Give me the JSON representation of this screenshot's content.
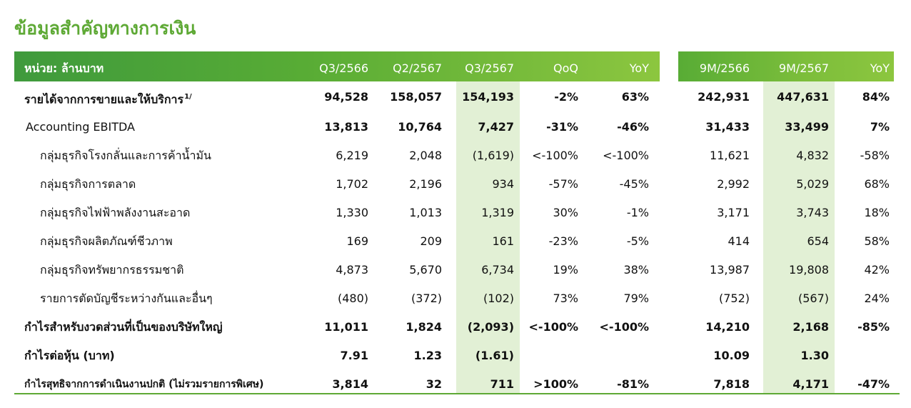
{
  "title": "ข้อมูลสำคัญทางการเงิน",
  "header": {
    "unit": "หน่วย: ล้านบาท",
    "columns": [
      "Q3/2566",
      "Q2/2567",
      "Q3/2567",
      "QoQ",
      "YoY",
      "9M/2566",
      "9M/2567",
      "YoY"
    ]
  },
  "rows": [
    {
      "label": "รายได้จากการขายและให้บริการ",
      "sup": "1/",
      "bold": true,
      "indent": 0,
      "values": [
        "94,528",
        "158,057",
        "154,193",
        "-2%",
        "63%",
        "242,931",
        "447,631",
        "84%"
      ]
    },
    {
      "label": "Accounting EBITDA",
      "bold": false,
      "indent": 1,
      "bold_values": true,
      "values": [
        "13,813",
        "10,764",
        "7,427",
        "-31%",
        "-46%",
        "31,433",
        "33,499",
        "7%"
      ]
    },
    {
      "label": "กลุ่มธุรกิจโรงกลั่นและการค้าน้ำมัน",
      "bold": false,
      "indent": 2,
      "values": [
        "6,219",
        "2,048",
        "(1,619)",
        "<-100%",
        "<-100%",
        "11,621",
        "4,832",
        "-58%"
      ]
    },
    {
      "label": "กลุ่มธุรกิจการตลาด",
      "bold": false,
      "indent": 2,
      "values": [
        "1,702",
        "2,196",
        "934",
        "-57%",
        "-45%",
        "2,992",
        "5,029",
        "68%"
      ]
    },
    {
      "label": "กลุ่มธุรกิจไฟฟ้าพลังงานสะอาด",
      "bold": false,
      "indent": 2,
      "values": [
        "1,330",
        "1,013",
        "1,319",
        "30%",
        "-1%",
        "3,171",
        "3,743",
        "18%"
      ]
    },
    {
      "label": "กลุ่มธุรกิจผลิตภัณฑ์ชีวภาพ",
      "bold": false,
      "indent": 2,
      "values": [
        "169",
        "209",
        "161",
        "-23%",
        "-5%",
        "414",
        "654",
        "58%"
      ]
    },
    {
      "label": "กลุ่มธุรกิจทรัพยากรธรรมชาติ",
      "bold": false,
      "indent": 2,
      "values": [
        "4,873",
        "5,670",
        "6,734",
        "19%",
        "38%",
        "13,987",
        "19,808",
        "42%"
      ]
    },
    {
      "label": "รายการตัดบัญชีระหว่างกันและอื่นๆ",
      "bold": false,
      "indent": 2,
      "values": [
        "(480)",
        "(372)",
        "(102)",
        "73%",
        "79%",
        "(752)",
        "(567)",
        "24%"
      ]
    },
    {
      "label": "กำไรสำหรับงวดส่วนที่เป็นของบริษัทใหญ่",
      "bold": true,
      "indent": 0,
      "values": [
        "11,011",
        "1,824",
        "(2,093)",
        "<-100%",
        "<-100%",
        "14,210",
        "2,168",
        "-85%"
      ]
    },
    {
      "label": "กำไรต่อหุ้น (บาท)",
      "bold": true,
      "indent": 0,
      "values": [
        "7.91",
        "1.23",
        "(1.61)",
        "",
        "",
        "10.09",
        "1.30",
        ""
      ]
    },
    {
      "label": "กำไรสุทธิจากการดำเนินงานปกติ (ไม่รวมรายการพิเศษ)",
      "bold": true,
      "indent": 0,
      "small": true,
      "values": [
        "3,814",
        "32",
        "711",
        ">100%",
        "-81%",
        "7,818",
        "4,171",
        "-47%"
      ]
    }
  ],
  "colors": {
    "title": "#5ea935",
    "header_start": "#3f9a3c",
    "header_end": "#8cc63f",
    "highlight": "#e2f0d5"
  }
}
